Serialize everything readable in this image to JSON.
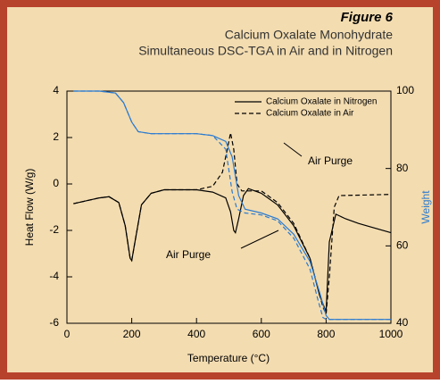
{
  "chart_data": {
    "type": "line",
    "title": "Figure 6",
    "subtitle": [
      "Calcium Oxalate Monohydrate",
      "Simultaneous DSC-TGA in Air and in Nitrogen"
    ],
    "xlabel": "Temperature (°C)",
    "ylabel": "Heat Flow (W/g)",
    "y2label": "Weight",
    "xlim": [
      0,
      1000
    ],
    "xticks": [
      0,
      200,
      400,
      600,
      800,
      1000
    ],
    "ylim": [
      -6,
      4
    ],
    "yticks": [
      -6,
      -4,
      -2,
      0,
      2,
      4
    ],
    "y2lim": [
      40,
      100
    ],
    "y2ticks": [
      40,
      60,
      80,
      100
    ],
    "legend": "upper right",
    "annotations": [
      "Air Purge",
      "Air Purge"
    ],
    "series": [
      {
        "name": "Calcium Oxalate in Nitrogen",
        "color": "#000000",
        "dash": false,
        "x": [
          20,
          100,
          130,
          160,
          180,
          195,
          200,
          210,
          230,
          260,
          300,
          400,
          450,
          490,
          505,
          515,
          520,
          530,
          545,
          560,
          600,
          650,
          700,
          750,
          780,
          800,
          810,
          830,
          860,
          900,
          1000
        ],
        "values": [
          -0.85,
          -0.6,
          -0.55,
          -0.8,
          -1.8,
          -3.2,
          -3.3,
          -2.5,
          -0.9,
          -0.4,
          -0.25,
          -0.25,
          -0.35,
          -0.6,
          -1.2,
          -2.0,
          -2.1,
          -1.5,
          -0.5,
          -0.2,
          -0.4,
          -0.9,
          -1.8,
          -3.2,
          -4.8,
          -5.5,
          -2.5,
          -1.3,
          -1.5,
          -1.7,
          -2.1
        ]
      },
      {
        "name": "Calcium Oxalate in Air",
        "color": "#000000",
        "dash": true,
        "x": [
          20,
          100,
          130,
          160,
          180,
          195,
          200,
          210,
          230,
          260,
          300,
          400,
          450,
          480,
          495,
          505,
          515,
          525,
          540,
          600,
          650,
          700,
          750,
          790,
          800,
          810,
          825,
          840,
          1000
        ],
        "values": [
          -0.85,
          -0.6,
          -0.55,
          -0.8,
          -1.8,
          -3.2,
          -3.3,
          -2.5,
          -0.9,
          -0.4,
          -0.25,
          -0.25,
          -0.1,
          0.5,
          1.5,
          2.2,
          1.5,
          0,
          -0.3,
          -0.3,
          -0.8,
          -1.7,
          -3.2,
          -5.3,
          -5.6,
          -4,
          -1,
          -0.5,
          -0.45
        ]
      },
      {
        "color": "#2b7bd0",
        "dash": false,
        "axis": "y2",
        "x": [
          20,
          100,
          150,
          175,
          200,
          220,
          260,
          400,
          450,
          490,
          510,
          530,
          550,
          600,
          650,
          700,
          750,
          780,
          800,
          810,
          1000
        ],
        "values": [
          100,
          100,
          99.5,
          97,
          92,
          89.5,
          89,
          89,
          88.5,
          87,
          83,
          73,
          69.5,
          68.5,
          67,
          63,
          56,
          48,
          42,
          41,
          41
        ]
      },
      {
        "color": "#2b7bd0",
        "dash": true,
        "axis": "y2",
        "x": [
          20,
          100,
          150,
          175,
          200,
          220,
          260,
          400,
          450,
          490,
          510,
          525,
          550,
          600,
          650,
          700,
          750,
          775,
          790,
          800,
          1000
        ],
        "values": [
          100,
          100,
          99.5,
          97,
          92,
          89.5,
          89,
          89,
          88.5,
          85,
          74,
          69.5,
          68.5,
          68,
          66.5,
          62,
          54,
          46,
          41.5,
          41,
          41
        ]
      }
    ]
  }
}
